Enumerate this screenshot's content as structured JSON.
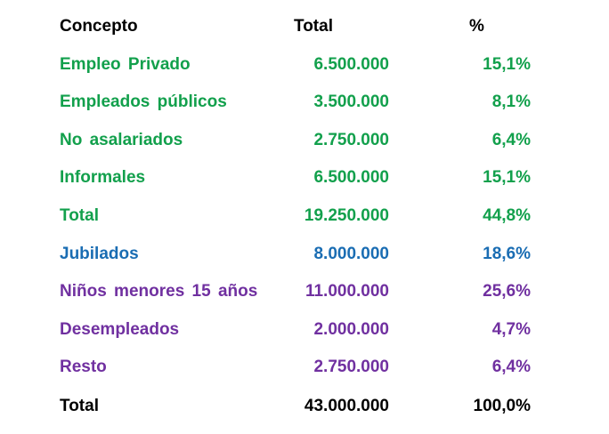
{
  "header": {
    "concept": "Concepto",
    "total": "Total",
    "percent": "%"
  },
  "colors": {
    "green": "#12a04c",
    "blue": "#1a6db3",
    "purple": "#7030a0",
    "black": "#000000"
  },
  "rows": [
    {
      "concept": "Empleo Privado",
      "total": "6.500.000",
      "percent": "15,1%",
      "color": "green"
    },
    {
      "concept": "Empleados públicos",
      "total": "3.500.000",
      "percent": "8,1%",
      "color": "green"
    },
    {
      "concept": "No asalariados",
      "total": "2.750.000",
      "percent": "6,4%",
      "color": "green"
    },
    {
      "concept": "Informales",
      "total": "6.500.000",
      "percent": "15,1%",
      "color": "green"
    },
    {
      "concept": "Total",
      "total": "19.250.000",
      "percent": "44,8%",
      "color": "green"
    },
    {
      "concept": "Jubilados",
      "total": "8.000.000",
      "percent": "18,6%",
      "color": "blue"
    },
    {
      "concept": "Niños menores 15 años",
      "total": "11.000.000",
      "percent": "25,6%",
      "color": "purple"
    },
    {
      "concept": "Desempleados",
      "total": "2.000.000",
      "percent": "4,7%",
      "color": "purple"
    },
    {
      "concept": "Resto",
      "total": "2.750.000",
      "percent": "6,4%",
      "color": "purple"
    },
    {
      "concept": "Total",
      "total": "43.000.000",
      "percent": "100,0%",
      "color": "black"
    }
  ]
}
